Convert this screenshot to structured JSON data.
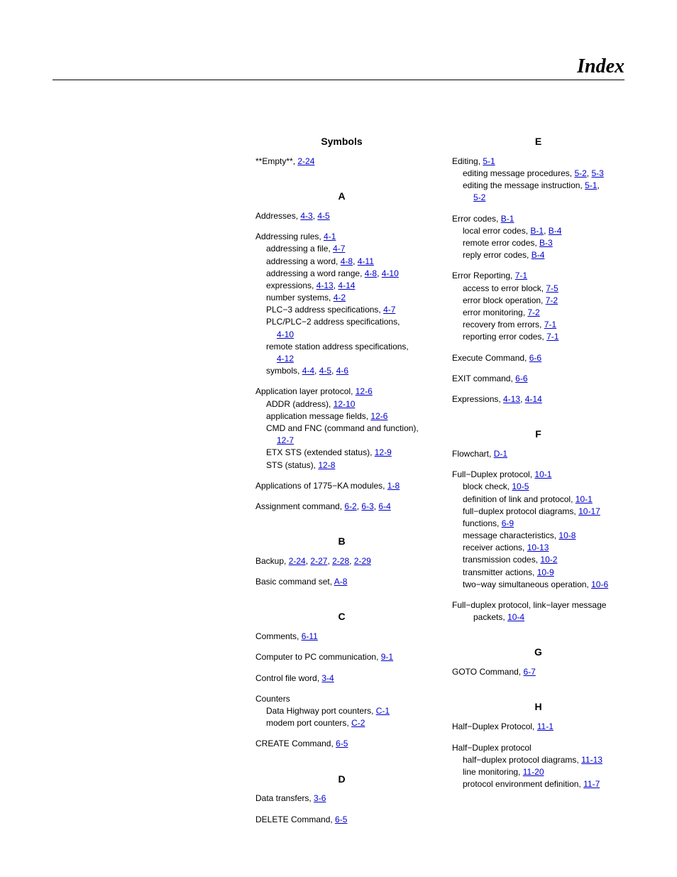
{
  "page_title": "Index",
  "col1": {
    "symbols_head": "Symbols",
    "s1_t": "**Empty**,  ",
    "s1_r1": "2-24",
    "a_head": "A",
    "a1_t": "Addresses,  ",
    "a1_r1": "4-3",
    "a1_r2": "4-5",
    "a2_t": "Addressing rules,  ",
    "a2_r1": "4-1",
    "a2a_t": "addressing a file,  ",
    "a2a_r1": "4-7",
    "a2b_t": "addressing a word,  ",
    "a2b_r1": "4-8",
    "a2b_r2": "4-11",
    "a2c_t": "addressing a word range,  ",
    "a2c_r1": "4-8",
    "a2c_r2": "4-10",
    "a2d_t": "expressions,  ",
    "a2d_r1": "4-13",
    "a2d_r2": "4-14",
    "a2e_t": "number systems,  ",
    "a2e_r1": "4-2",
    "a2f_t": "PLC−3 address specifications,  ",
    "a2f_r1": "4-7",
    "a2g_t": "PLC/PLC−2 address specifications,",
    "a2g_r1": "4-10",
    "a2h_t": "remote station address specifications,",
    "a2h_r1": "4-12",
    "a2i_t": "symbols,  ",
    "a2i_r1": "4-4",
    "a2i_r2": "4-5",
    "a2i_r3": "4-6",
    "a3_t": "Application layer protocol,  ",
    "a3_r1": "12-6",
    "a3a_t": "ADDR (address),  ",
    "a3a_r1": "12-10",
    "a3b_t": "application message fields,  ",
    "a3b_r1": "12-6",
    "a3c_t": "CMD and FNC (command and function),",
    "a3c_r1": "12-7",
    "a3d_t": "ETX STS (extended status),  ",
    "a3d_r1": "12-9",
    "a3e_t": "STS (status),  ",
    "a3e_r1": "12-8",
    "a4_t": "Applications of 1775−KA modules,  ",
    "a4_r1": "1-8",
    "a5_t": "Assignment command,  ",
    "a5_r1": "6-2",
    "a5_r2": "6-3",
    "a5_r3": "6-4",
    "b_head": "B",
    "b1_t": "Backup,  ",
    "b1_r1": "2-24",
    "b1_r2": "2-27",
    "b1_r3": "2-28",
    "b1_r4": "2-29",
    "b2_t": "Basic command set,  ",
    "b2_r1": "A-8",
    "c_head": "C",
    "c1_t": "Comments,  ",
    "c1_r1": "6-11",
    "c2_t": "Computer to PC communication,  ",
    "c2_r1": "9-1",
    "c3_t": "Control file word,  ",
    "c3_r1": "3-4",
    "c4_t": "Counters",
    "c4a_t": "Data Highway port counters,  ",
    "c4a_r1": "C-1",
    "c4b_t": "modem port counters,  ",
    "c4b_r1": "C-2",
    "c5_t": "CREATE Command,  ",
    "c5_r1": "6-5",
    "d_head": "D",
    "d1_t": "Data transfers,  ",
    "d1_r1": "3-6",
    "d2_t": "DELETE Command,  ",
    "d2_r1": "6-5"
  },
  "col2": {
    "e_head": "E",
    "e1_t": "Editing,  ",
    "e1_r1": "5-1",
    "e1a_t": "editing message procedures,  ",
    "e1a_r1": "5-2",
    "e1a_r2": "5-3",
    "e1b_t": "editing the message instruction,  ",
    "e1b_r1": "5-1",
    "e1b_r2": "5-2",
    "e2_t": "Error codes,  ",
    "e2_r1": "B-1",
    "e2a_t": "local error codes,  ",
    "e2a_r1": "B-1",
    "e2a_r2": "B-4",
    "e2b_t": "remote error codes,  ",
    "e2b_r1": "B-3",
    "e2c_t": "reply error codes,  ",
    "e2c_r1": "B-4",
    "e3_t": "Error Reporting,  ",
    "e3_r1": "7-1",
    "e3a_t": "access to error block,  ",
    "e3a_r1": "7-5",
    "e3b_t": "error block operation,  ",
    "e3b_r1": "7-2",
    "e3c_t": "error monitoring,  ",
    "e3c_r1": "7-2",
    "e3d_t": "recovery from errors,  ",
    "e3d_r1": "7-1",
    "e3e_t": "reporting error codes,  ",
    "e3e_r1": "7-1",
    "e4_t": "Execute Command,  ",
    "e4_r1": "6-6",
    "e5_t": "EXIT command,  ",
    "e5_r1": "6-6",
    "e6_t": "Expressions,  ",
    "e6_r1": "4-13",
    "e6_r2": "4-14",
    "f_head": "F",
    "f1_t": "Flowchart,  ",
    "f1_r1": "D-1",
    "f2_t": "Full−Duplex protocol,  ",
    "f2_r1": "10-1",
    "f2a_t": "block check,  ",
    "f2a_r1": "10-5",
    "f2b_t": "definition of link and protocol,  ",
    "f2b_r1": "10-1",
    "f2c_t": "full−duplex protocol diagrams,  ",
    "f2c_r1": "10-17",
    "f2d_t": "functions,  ",
    "f2d_r1": "6-9",
    "f2e_t": "message characteristics,  ",
    "f2e_r1": "10-8",
    "f2f_t": "receiver actions,  ",
    "f2f_r1": "10-13",
    "f2g_t": "transmission codes,  ",
    "f2g_r1": "10-2",
    "f2h_t": "transmitter actions,  ",
    "f2h_r1": "10-9",
    "f2i_t": "two−way simultaneous operation,  ",
    "f2i_r1": "10-6",
    "f3_t": "Full−duplex protocol, link−layer message",
    "f3a_t": "packets,  ",
    "f3a_r1": "10-4",
    "g_head": "G",
    "g1_t": "GOTO Command,  ",
    "g1_r1": "6-7",
    "h_head": "H",
    "h1_t": "Half−Duplex Protocol,  ",
    "h1_r1": "11-1",
    "h2_t": "Half−Duplex protocol",
    "h2a_t": "half−duplex protocol diagrams,  ",
    "h2a_r1": "11-13",
    "h2b_t": "line monitoring,  ",
    "h2b_r1": "11-20",
    "h2c_t": "protocol environment definition,  ",
    "h2c_r1": "11-7"
  }
}
